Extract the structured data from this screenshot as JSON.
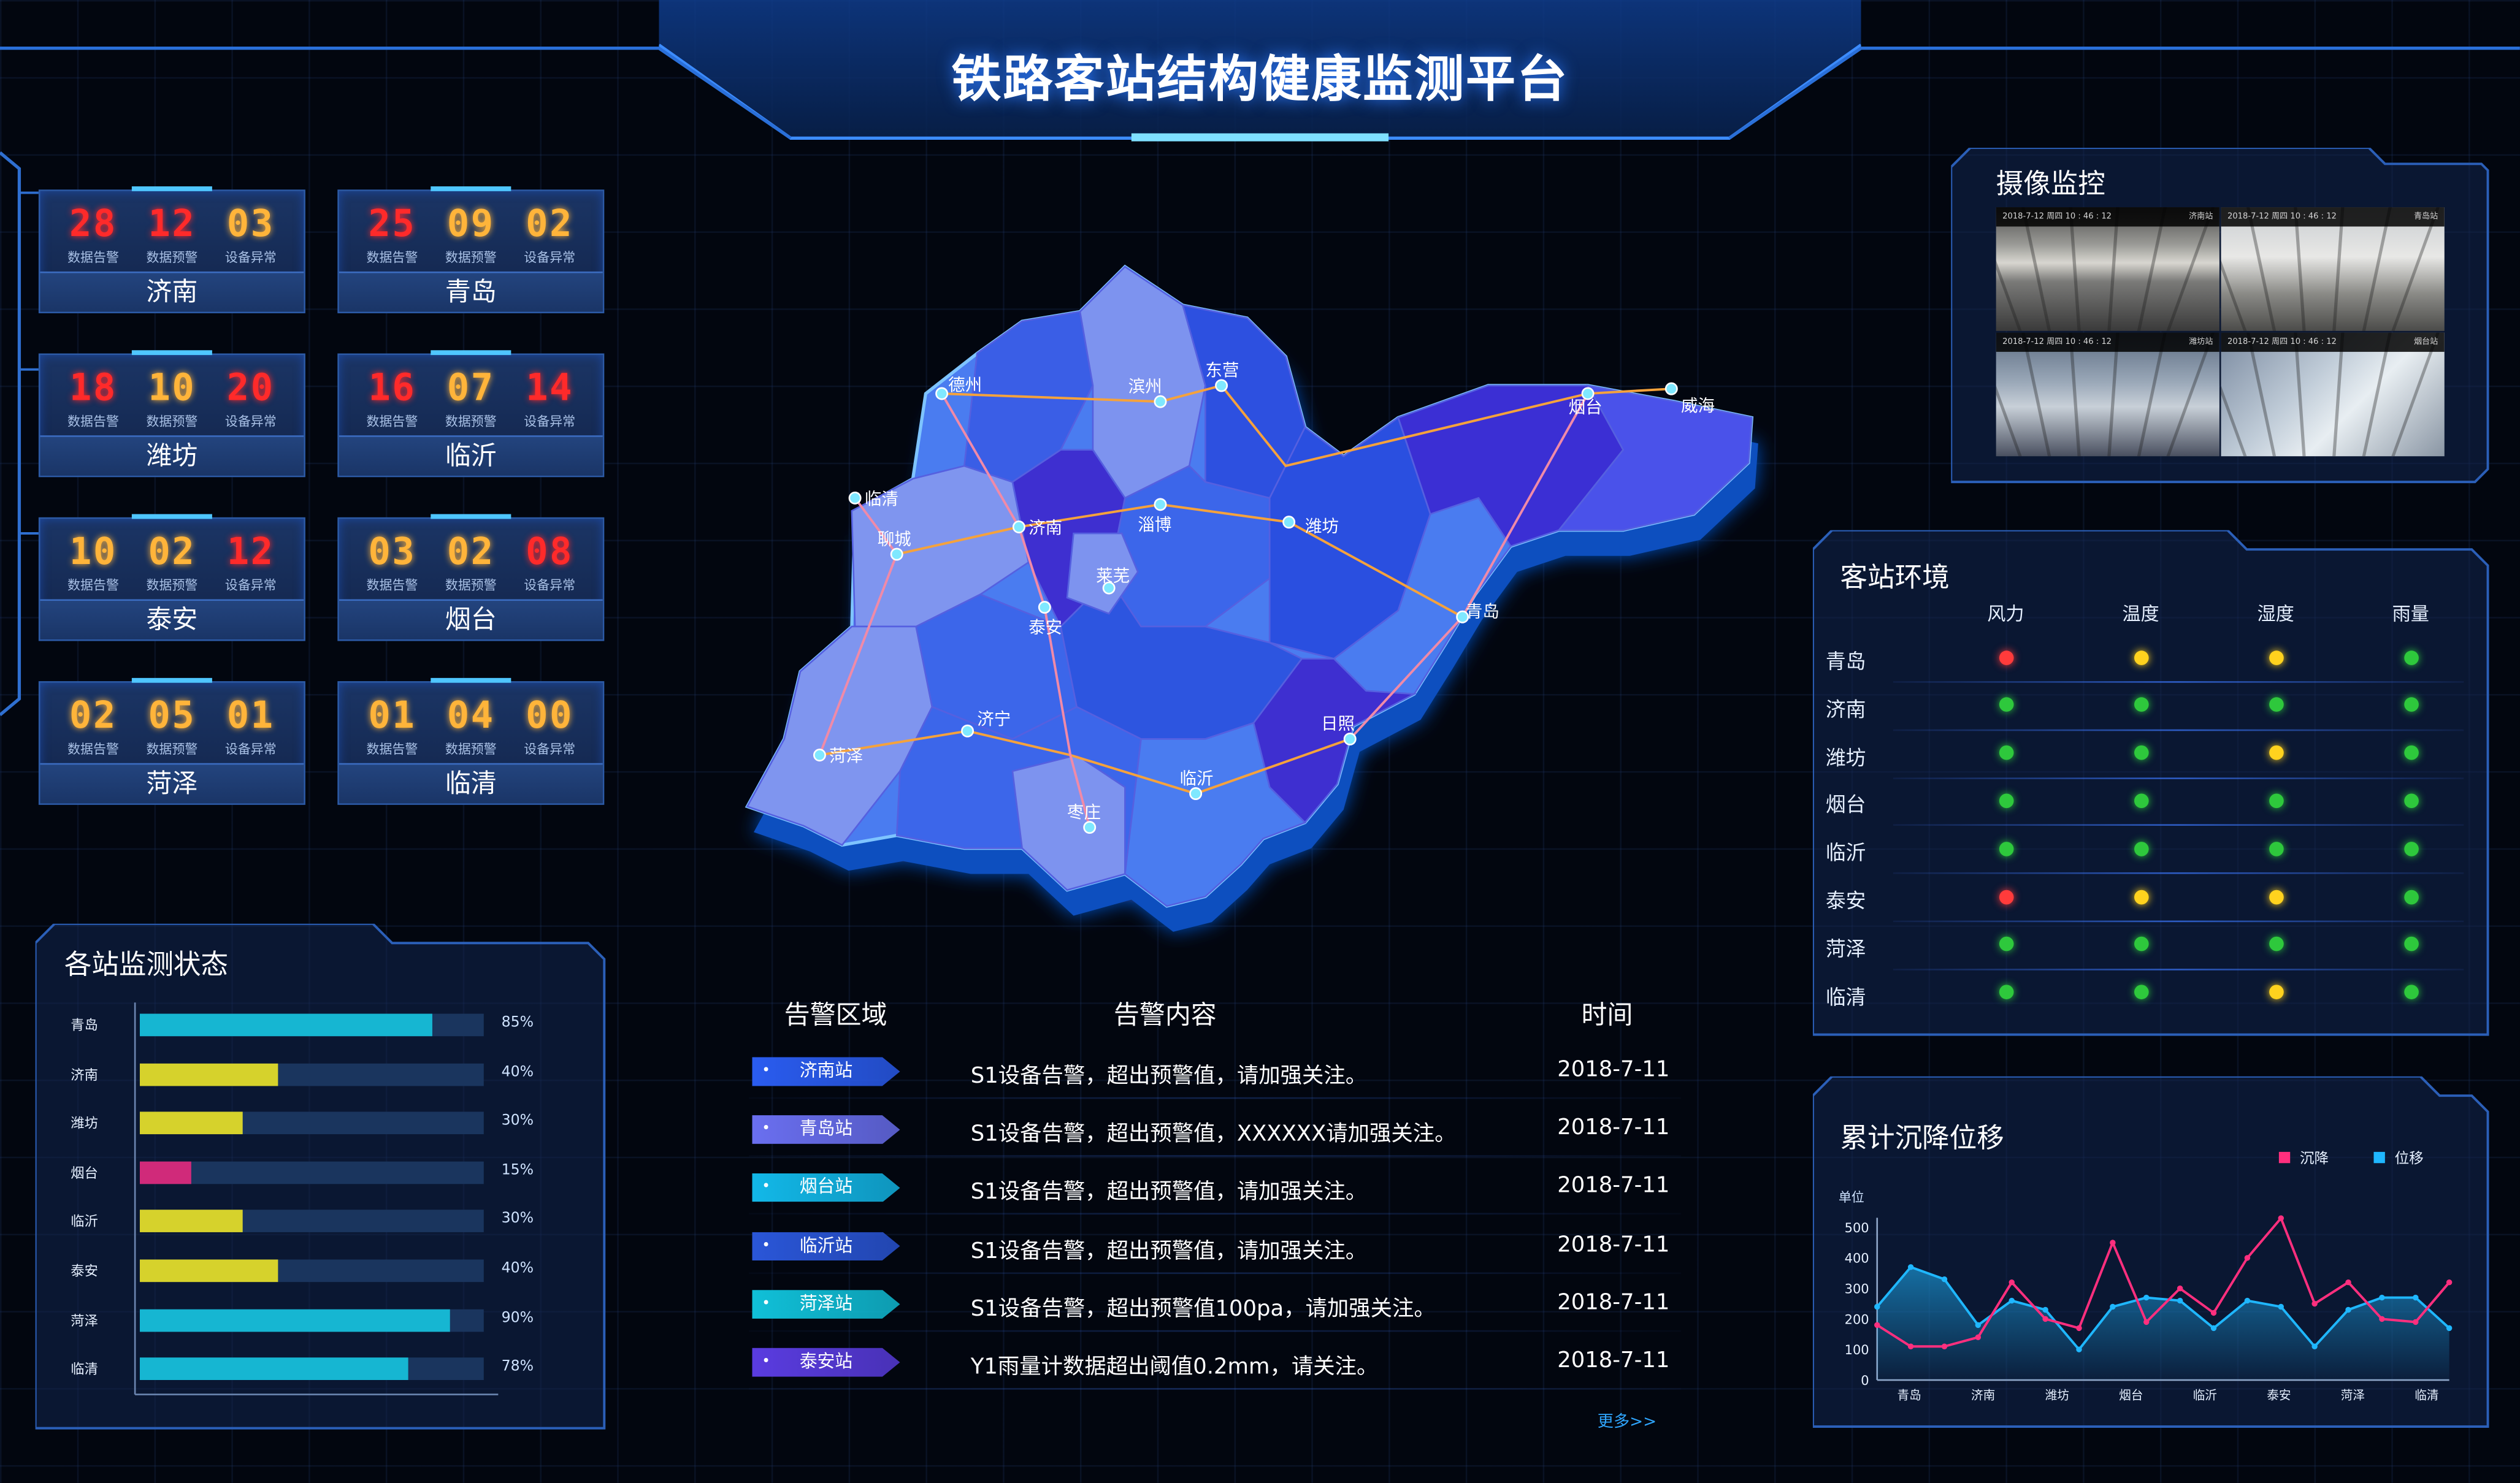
{
  "title": "铁路客站结构健康监测平台",
  "stat_labels": [
    "数据告警",
    "数据预警",
    "设备异常"
  ],
  "stations": [
    {
      "city": "济南",
      "values": [
        "28",
        "12",
        "03"
      ],
      "colors": [
        "#ff2a2a",
        "#ff2a2a",
        "#ffb43a"
      ]
    },
    {
      "city": "青岛",
      "values": [
        "25",
        "09",
        "02"
      ],
      "colors": [
        "#ff2a2a",
        "#ffb43a",
        "#ffb43a"
      ]
    },
    {
      "city": "潍坊",
      "values": [
        "18",
        "10",
        "20"
      ],
      "colors": [
        "#ff2a2a",
        "#ffb43a",
        "#ff2a2a"
      ]
    },
    {
      "city": "临沂",
      "values": [
        "16",
        "07",
        "14"
      ],
      "colors": [
        "#ff2a2a",
        "#ffb43a",
        "#ff2a2a"
      ]
    },
    {
      "city": "泰安",
      "values": [
        "10",
        "02",
        "12"
      ],
      "colors": [
        "#ffb43a",
        "#ffb43a",
        "#ff2a2a"
      ]
    },
    {
      "city": "烟台",
      "values": [
        "03",
        "02",
        "08"
      ],
      "colors": [
        "#ffb43a",
        "#ffb43a",
        "#ff2a2a"
      ]
    },
    {
      "city": "菏泽",
      "values": [
        "02",
        "05",
        "01"
      ],
      "colors": [
        "#ffb43a",
        "#ffb43a",
        "#ffb43a"
      ]
    },
    {
      "city": "临清",
      "values": [
        "01",
        "04",
        "00"
      ],
      "colors": [
        "#ffb43a",
        "#ffb43a",
        "#ffb43a"
      ]
    }
  ],
  "status_panel": {
    "title": "各站监测状态",
    "rows": [
      {
        "name": "青岛",
        "pct": 85,
        "label": "85%",
        "color": "#16b6d2"
      },
      {
        "name": "济南",
        "pct": 40,
        "label": "40%",
        "color": "#d6d22c"
      },
      {
        "name": "潍坊",
        "pct": 30,
        "label": "30%",
        "color": "#d6d22c"
      },
      {
        "name": "烟台",
        "pct": 15,
        "label": "15%",
        "color": "#d02a7a"
      },
      {
        "name": "临沂",
        "pct": 30,
        "label": "30%",
        "color": "#d6d22c"
      },
      {
        "name": "泰安",
        "pct": 40,
        "label": "40%",
        "color": "#d6d22c"
      },
      {
        "name": "菏泽",
        "pct": 90,
        "label": "90%",
        "color": "#16b6d2"
      },
      {
        "name": "临清",
        "pct": 78,
        "label": "78%",
        "color": "#16b6d2"
      }
    ]
  },
  "map": {
    "cities": [
      "德州",
      "滨州",
      "东营",
      "烟台",
      "威海",
      "临清",
      "聊城",
      "济南",
      "淄博",
      "潍坊",
      "莱芜",
      "泰安",
      "青岛",
      "日照",
      "菏泽",
      "济宁",
      "临沂",
      "枣庄"
    ]
  },
  "alerts": {
    "headers": [
      "告警区域",
      "告警内容",
      "时间"
    ],
    "rows": [
      {
        "station": "济南站",
        "content": "S1设备告警，超出预警值，请加强关注。",
        "date": "2018-7-11",
        "color": "#2a5cf0"
      },
      {
        "station": "青岛站",
        "content": "S1设备告警，超出预警值，XXXXXX请加强关注。",
        "date": "2018-7-11",
        "color": "#6a6ff0"
      },
      {
        "station": "烟台站",
        "content": "S1设备告警，超出预警值，请加强关注。",
        "date": "2018-7-11",
        "color": "#12b8e8"
      },
      {
        "station": "临沂站",
        "content": "S1设备告警，超出预警值，请加强关注。",
        "date": "2018-7-11",
        "color": "#2a56d8"
      },
      {
        "station": "菏泽站",
        "content": "S1设备告警，超出预警值100pa，请加强关注。",
        "date": "2018-7-11",
        "color": "#10c0d8"
      },
      {
        "station": "泰安站",
        "content": "Y1雨量计数据超出阈值0.2mm，请关注。",
        "date": "2018-7-11",
        "color": "#5a3ce0"
      }
    ],
    "more": "更多>>"
  },
  "camera": {
    "title": "摄像监控",
    "feeds": [
      {
        "stamp": "2018-7-12 周四   10 : 46 : 12",
        "station": "济南站"
      },
      {
        "stamp": "2018-7-12 周四   10 : 46 : 12",
        "station": "青岛站"
      },
      {
        "stamp": "2018-7-12 周四   10 : 46 : 12",
        "station": "潍坊站"
      },
      {
        "stamp": "2018-7-12 周四   10 : 46 : 12",
        "station": "烟台站"
      }
    ]
  },
  "environment": {
    "title": "客站环境",
    "columns": [
      "风力",
      "温度",
      "湿度",
      "雨量"
    ],
    "rows": [
      {
        "name": "青岛",
        "status": [
          "red",
          "yellow",
          "yellow",
          "green"
        ]
      },
      {
        "name": "济南",
        "status": [
          "green",
          "green",
          "green",
          "green"
        ]
      },
      {
        "name": "潍坊",
        "status": [
          "green",
          "green",
          "yellow",
          "green"
        ]
      },
      {
        "name": "烟台",
        "status": [
          "green",
          "green",
          "green",
          "green"
        ]
      },
      {
        "name": "临沂",
        "status": [
          "green",
          "green",
          "green",
          "green"
        ]
      },
      {
        "name": "泰安",
        "status": [
          "red",
          "yellow",
          "yellow",
          "green"
        ]
      },
      {
        "name": "菏泽",
        "status": [
          "green",
          "green",
          "green",
          "green"
        ]
      },
      {
        "name": "临清",
        "status": [
          "green",
          "green",
          "yellow",
          "green"
        ]
      }
    ],
    "status_colors": {
      "red": "#ff3b3b",
      "yellow": "#ffd21e",
      "green": "#2ec83c"
    }
  },
  "chart_panel": {
    "title": "累计沉降位移"
  },
  "chart_data": {
    "type": "line",
    "ylabel": "单位",
    "ylim": [
      0,
      500
    ],
    "yticks": [
      0,
      100,
      200,
      300,
      400,
      500
    ],
    "categories": [
      "青岛",
      "济南",
      "潍坊",
      "烟台",
      "临沂",
      "泰安",
      "菏泽",
      "临清"
    ],
    "x": [
      0,
      1,
      2,
      3,
      4,
      5,
      6,
      7,
      8,
      9,
      10,
      11,
      12,
      13,
      14,
      15,
      16,
      17,
      18,
      19,
      20,
      21
    ],
    "series": [
      {
        "name": "沉降",
        "color": "#ff2f7e",
        "values": [
          180,
          110,
          110,
          140,
          320,
          200,
          170,
          450,
          190,
          300,
          220,
          400,
          530,
          250,
          320,
          200,
          190,
          320,
          0,
          0,
          0,
          0
        ]
      },
      {
        "name": "位移",
        "color": "#1fb7ff",
        "values": [
          240,
          370,
          330,
          180,
          260,
          230,
          100,
          240,
          270,
          260,
          170,
          260,
          240,
          110,
          230,
          270,
          270,
          170,
          0,
          0,
          0,
          0
        ]
      }
    ]
  }
}
